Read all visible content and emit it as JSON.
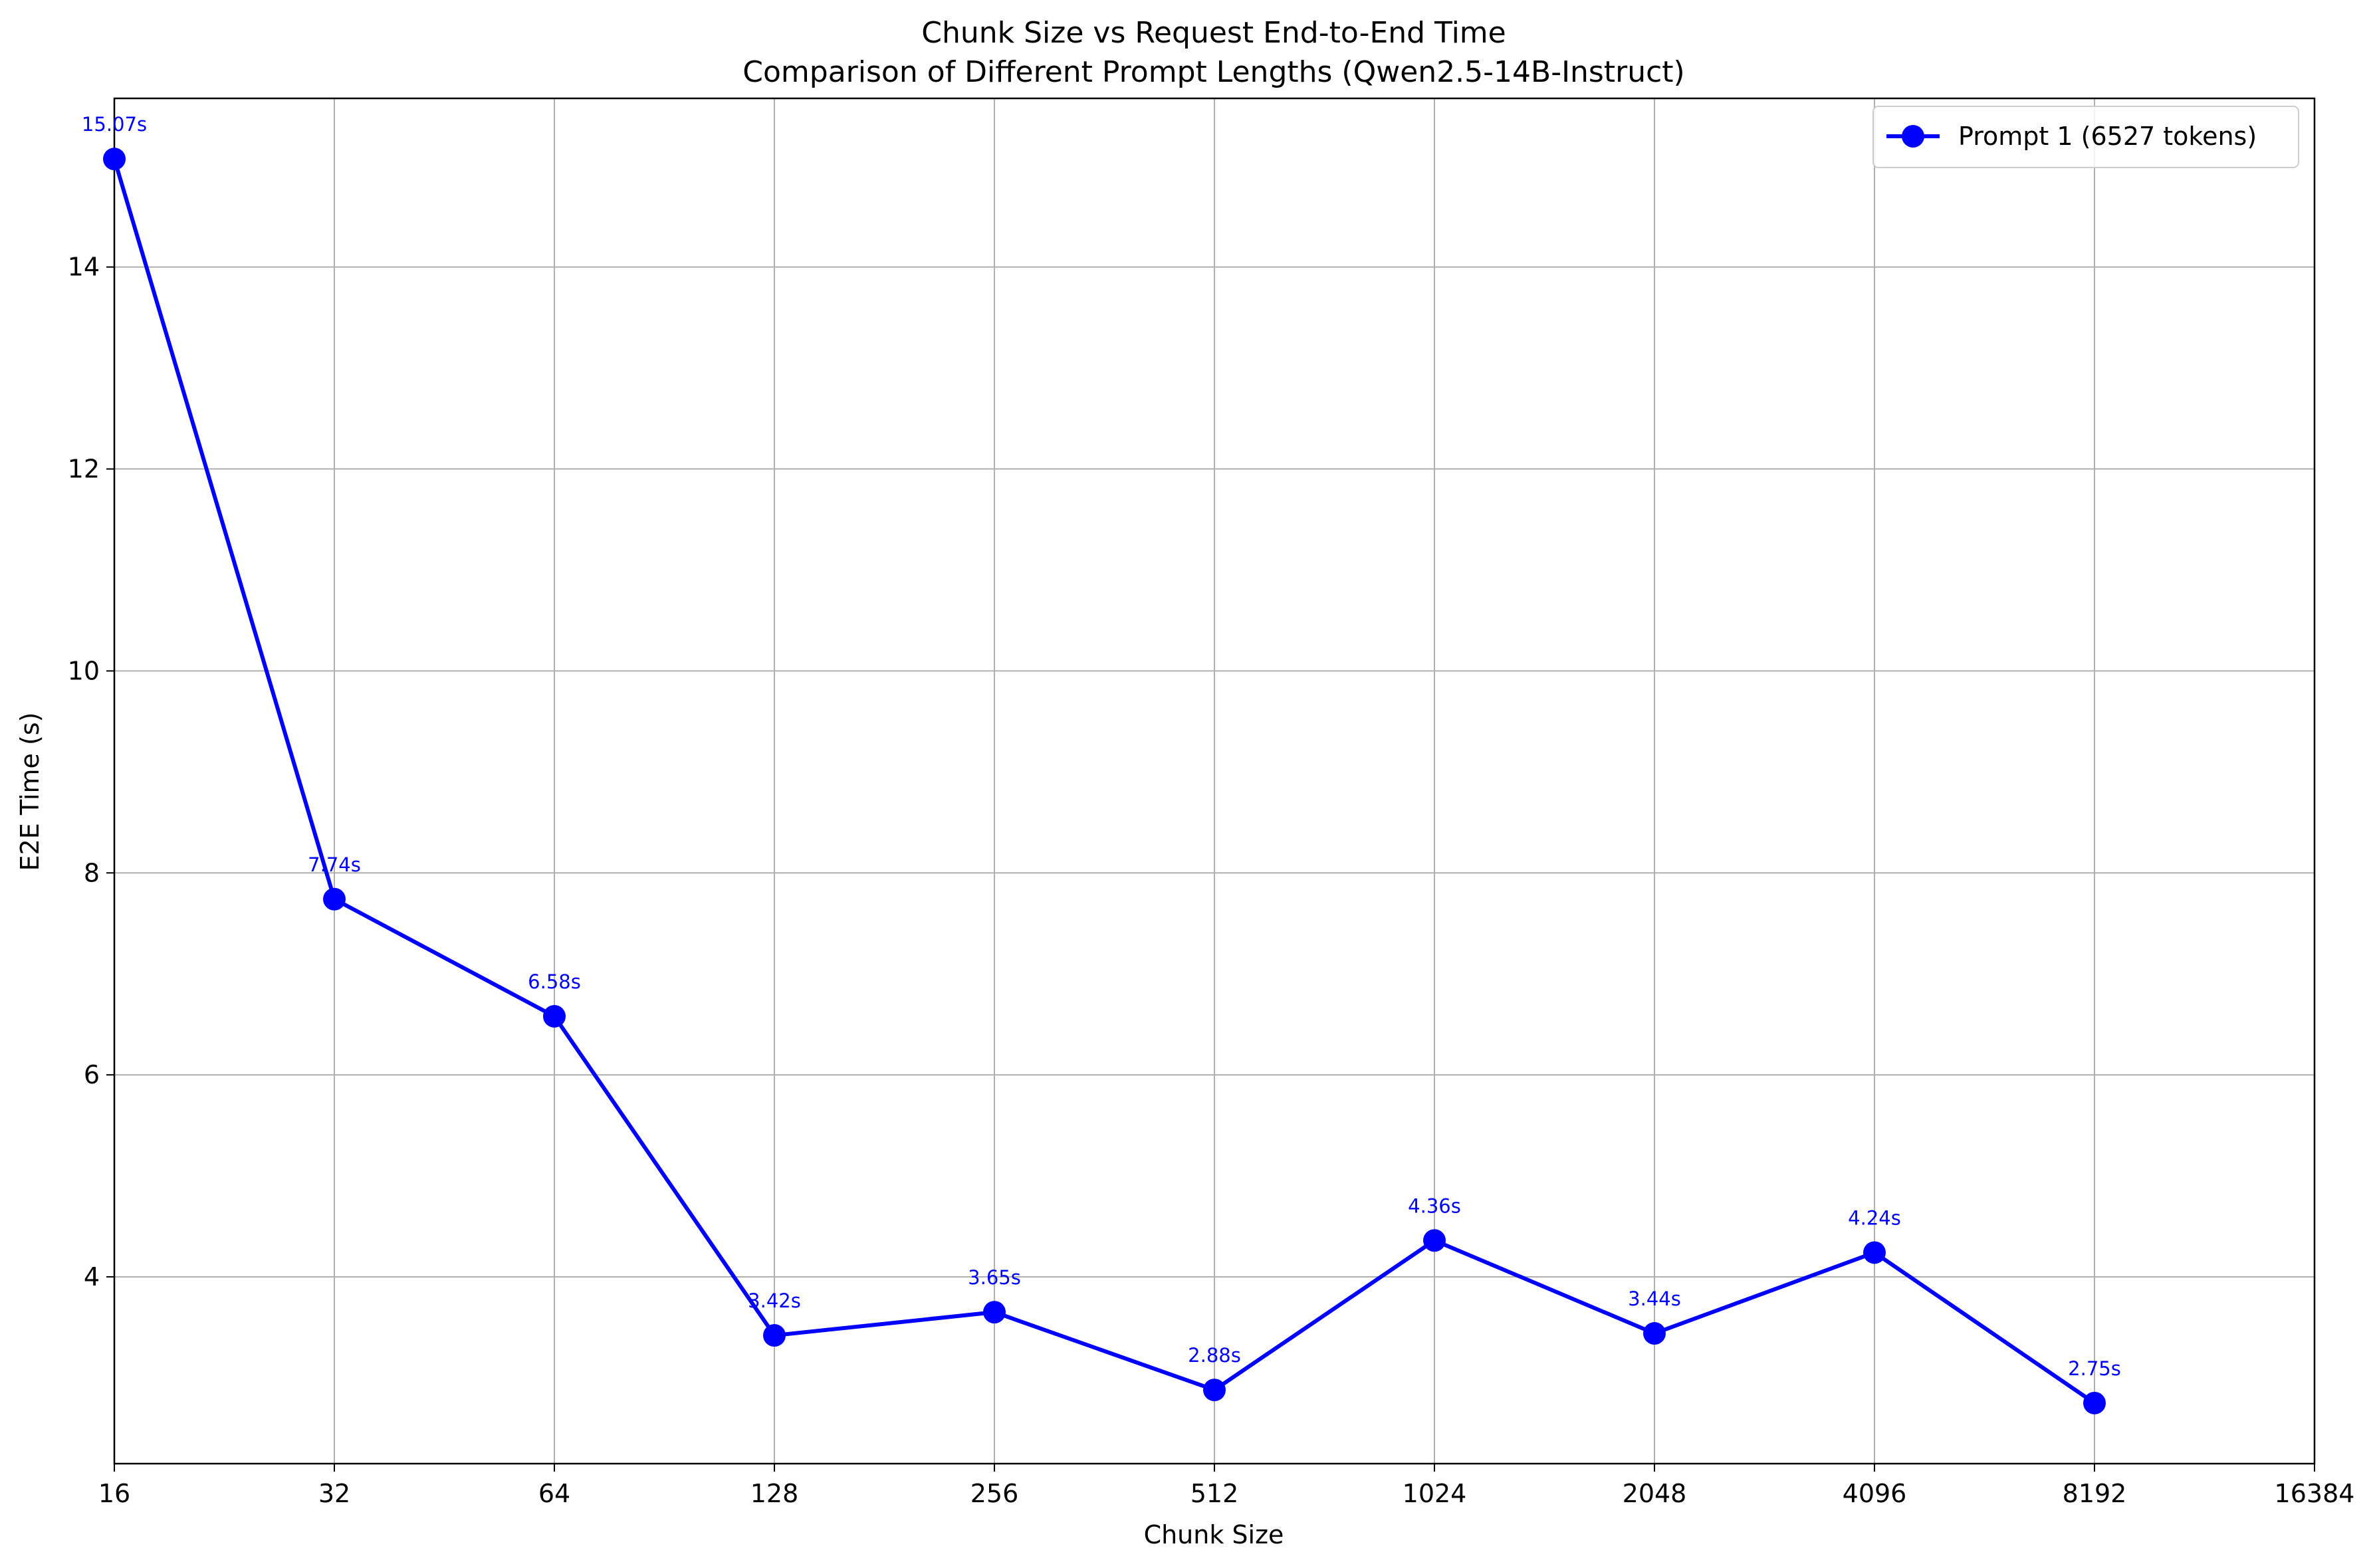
{
  "chart_data": {
    "type": "line",
    "title": "Chunk Size vs Request End-to-End Time",
    "subtitle": "Comparison of Different Prompt Lengths (Qwen2.5-14B-Instruct)",
    "xlabel": "Chunk Size",
    "ylabel": "E2E Time (s)",
    "x_scale": "log2",
    "x_ticks": [
      16,
      32,
      64,
      128,
      256,
      512,
      1024,
      2048,
      4096,
      8192,
      16384
    ],
    "x_tick_labels": [
      "16",
      "32",
      "64",
      "128",
      "256",
      "512",
      "1024",
      "2048",
      "4096",
      "8192",
      "16384"
    ],
    "xlim": [
      16,
      16384
    ],
    "y_ticks": [
      4,
      6,
      8,
      10,
      12,
      14
    ],
    "y_tick_labels": [
      "4",
      "6",
      "8",
      "10",
      "12",
      "14"
    ],
    "ylim": [
      2.15,
      15.67
    ],
    "grid": true,
    "legend_position": "top-right",
    "series": [
      {
        "name": "Prompt 1 (6527 tokens)",
        "color": "#0000ff",
        "marker": "circle",
        "x": [
          16,
          32,
          64,
          128,
          256,
          512,
          1024,
          2048,
          4096,
          8192
        ],
        "y": [
          15.07,
          7.74,
          6.58,
          3.42,
          3.65,
          2.88,
          4.36,
          3.44,
          4.24,
          2.75
        ],
        "point_labels": [
          "15.07s",
          "7.74s",
          "6.58s",
          "3.42s",
          "3.65s",
          "2.88s",
          "4.36s",
          "3.44s",
          "4.24s",
          "2.75s"
        ]
      }
    ]
  }
}
